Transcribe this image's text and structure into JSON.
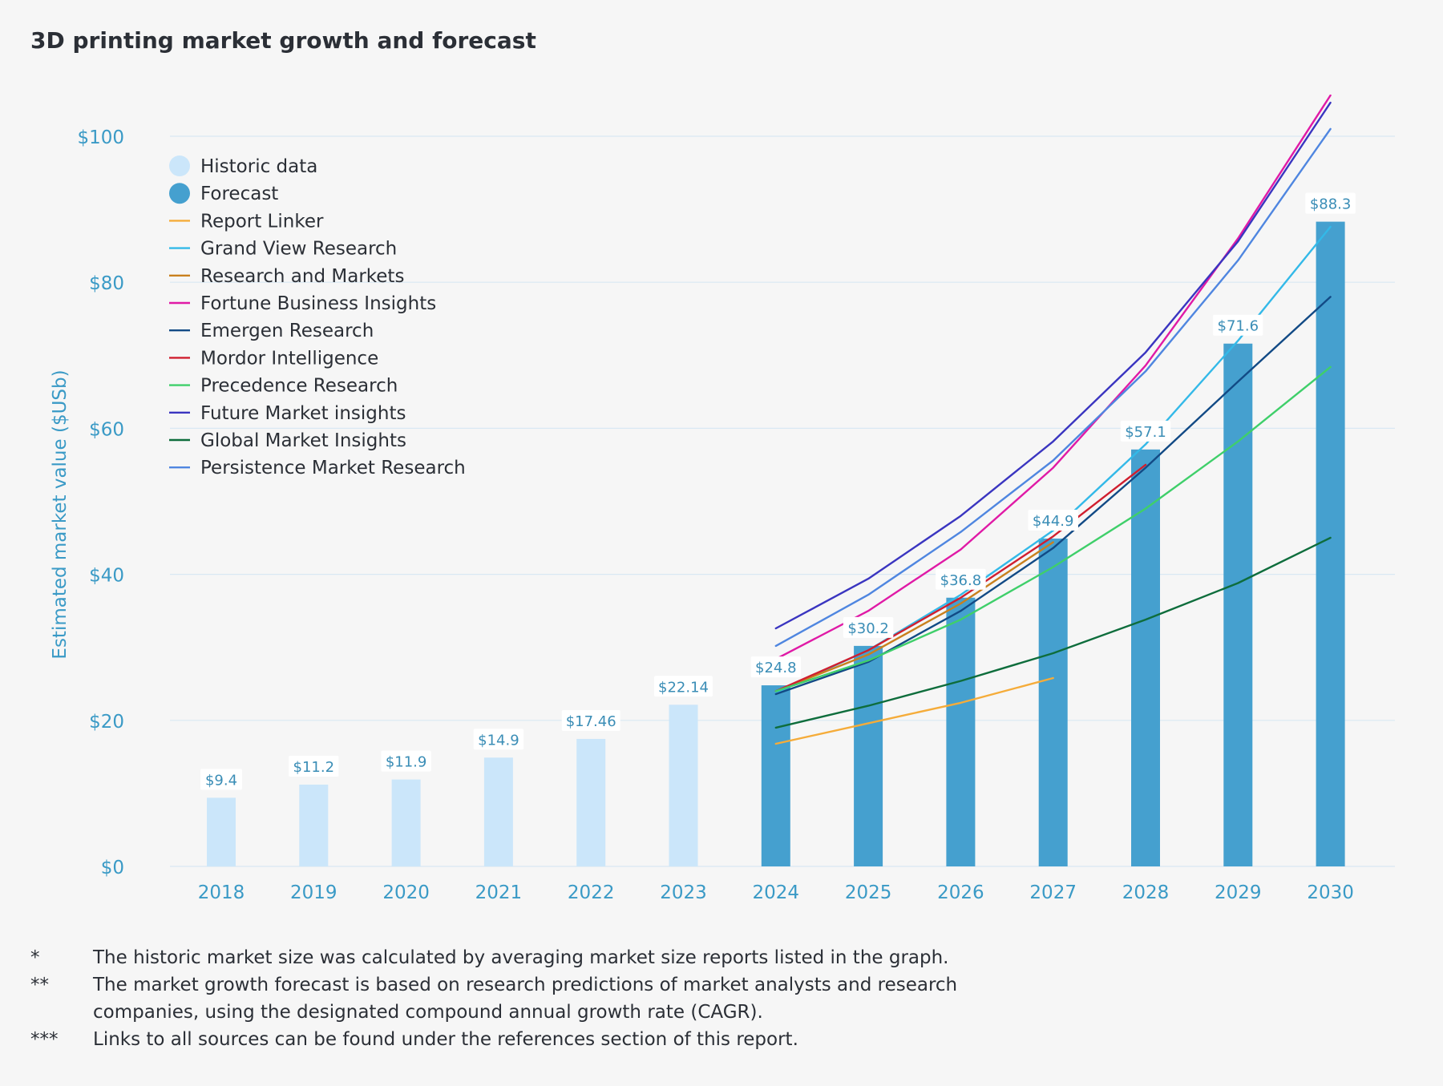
{
  "title": "3D printing market growth and forecast",
  "colors": {
    "historic": "#cbe6fa",
    "forecast": "#45a0cf",
    "axis_text": "#3a9ac6",
    "grid": "#d9e8f3",
    "label_text": "#3a8db6",
    "legend_text": "#2b2f36"
  },
  "chart_data": {
    "type": "bar",
    "ylabel": "Estimated market value ($USb)",
    "xlabel": "",
    "ylim": [
      0,
      100
    ],
    "yticks": [
      0,
      20,
      40,
      60,
      80,
      100
    ],
    "ytick_labels": [
      "$0",
      "$20",
      "$40",
      "$60",
      "$80",
      "$100"
    ],
    "grid": true,
    "legend_position": "top-left",
    "categories": [
      "2018",
      "2019",
      "2020",
      "2021",
      "2022",
      "2023",
      "2024",
      "2025",
      "2026",
      "2027",
      "2028",
      "2029",
      "2030"
    ],
    "bars": [
      {
        "name": "Historic data",
        "kind": "historic",
        "values": [
          9.4,
          11.2,
          11.9,
          14.9,
          17.46,
          22.14,
          null,
          null,
          null,
          null,
          null,
          null,
          null
        ]
      },
      {
        "name": "Forecast",
        "kind": "forecast",
        "values": [
          null,
          null,
          null,
          null,
          null,
          null,
          24.8,
          30.2,
          36.8,
          44.9,
          57.1,
          71.6,
          88.3
        ]
      }
    ],
    "data_labels": [
      "$9.4",
      "$11.2",
      "$11.9",
      "$14.9",
      "$17.46",
      "$22.14",
      "$24.8",
      "$30.2",
      "$36.8",
      "$44.9",
      "$57.1",
      "$71.6",
      "$88.3"
    ],
    "series": [
      {
        "name": "Report Linker",
        "color": "#f5ac3a",
        "x": [
          "2024",
          "2025",
          "2026",
          "2027"
        ],
        "values": [
          16.8,
          19.6,
          22.4,
          25.8
        ]
      },
      {
        "name": "Grand View Research",
        "color": "#33b9e8",
        "x": [
          "2024",
          "2025",
          "2026",
          "2027",
          "2028",
          "2029",
          "2030"
        ],
        "values": [
          23.8,
          29.6,
          37.2,
          46.0,
          57.8,
          72.0,
          87.6
        ]
      },
      {
        "name": "Research and Markets",
        "color": "#c9801e",
        "x": [
          "2024",
          "2025",
          "2026",
          "2027"
        ],
        "values": [
          24.0,
          29.0,
          36.0,
          44.4
        ]
      },
      {
        "name": "Fortune Business Insights",
        "color": "#e01aa6",
        "x": [
          "2024",
          "2025",
          "2026",
          "2027",
          "2028",
          "2029",
          "2030"
        ],
        "values": [
          28.4,
          35.0,
          43.4,
          54.6,
          68.6,
          86.0,
          105.6
        ]
      },
      {
        "name": "Emergen Research",
        "color": "#124a85",
        "x": [
          "2024",
          "2025",
          "2026",
          "2027",
          "2028",
          "2029",
          "2030"
        ],
        "values": [
          23.6,
          28.0,
          35.0,
          43.6,
          54.6,
          66.4,
          78.0
        ]
      },
      {
        "name": "Mordor Intelligence",
        "color": "#d01f2f",
        "x": [
          "2024",
          "2025",
          "2026",
          "2027",
          "2028"
        ],
        "values": [
          24.0,
          29.6,
          36.8,
          45.2,
          55.0
        ]
      },
      {
        "name": "Precedence Research",
        "color": "#3fcf6a",
        "x": [
          "2024",
          "2025",
          "2026",
          "2027",
          "2028",
          "2029",
          "2030"
        ],
        "values": [
          24.0,
          28.2,
          33.8,
          41.0,
          49.0,
          58.2,
          68.4
        ]
      },
      {
        "name": "Future Market insights",
        "color": "#3a35c0",
        "x": [
          "2024",
          "2025",
          "2026",
          "2027",
          "2028",
          "2029",
          "2030"
        ],
        "values": [
          32.6,
          39.4,
          48.0,
          58.2,
          70.4,
          85.6,
          104.6
        ]
      },
      {
        "name": "Global Market Insights",
        "color": "#0e6d3c",
        "x": [
          "2024",
          "2025",
          "2026",
          "2027",
          "2028",
          "2029",
          "2030"
        ],
        "values": [
          19.0,
          22.0,
          25.4,
          29.2,
          33.8,
          38.8,
          45.0
        ]
      },
      {
        "name": "Persistence Market Research",
        "color": "#4f86e0",
        "x": [
          "2024",
          "2025",
          "2026",
          "2027",
          "2028",
          "2029",
          "2030"
        ],
        "values": [
          30.2,
          37.2,
          45.8,
          55.6,
          67.8,
          83.0,
          101.0
        ]
      }
    ]
  },
  "footnotes": [
    {
      "mark": "*",
      "text": "The historic market size was calculated by averaging market size reports listed in the graph."
    },
    {
      "mark": "**",
      "text": "The market growth forecast is based on research predictions of market analysts and research companies, using the designated compound annual growth rate (CAGR)."
    },
    {
      "mark": "***",
      "text": "Links to all sources can be found under the references section of this report."
    }
  ]
}
